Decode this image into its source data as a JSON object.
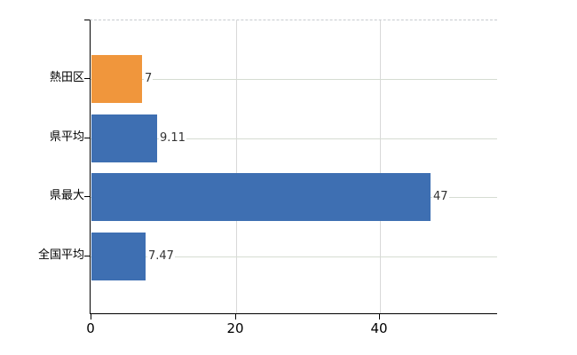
{
  "chart_data": {
    "type": "bar",
    "orientation": "horizontal",
    "title": "",
    "xlabel": "",
    "ylabel": "",
    "categories": [
      "熱田区",
      "県平均",
      "県最大",
      "全国平均"
    ],
    "values": [
      7,
      9.11,
      47,
      7.47
    ],
    "value_labels": [
      "7",
      "9.11",
      "47",
      "7.47"
    ],
    "bar_colors": [
      "#f0963c",
      "#3e6fb2",
      "#3e6fb2",
      "#3e6fb2"
    ],
    "x_ticks": [
      0,
      20,
      40
    ],
    "x_tick_labels": [
      "0",
      "20",
      "40"
    ],
    "xlim": [
      0,
      56.5
    ],
    "grid": true,
    "legend": "none",
    "colors": {
      "highlight_orange": "#f0963c",
      "series_blue": "#3e6fb2",
      "vertical_grid": "#d9d9d9",
      "horizontal_grid": "#d5dcd2",
      "axis": "#000000",
      "value_text": "#333333"
    }
  }
}
